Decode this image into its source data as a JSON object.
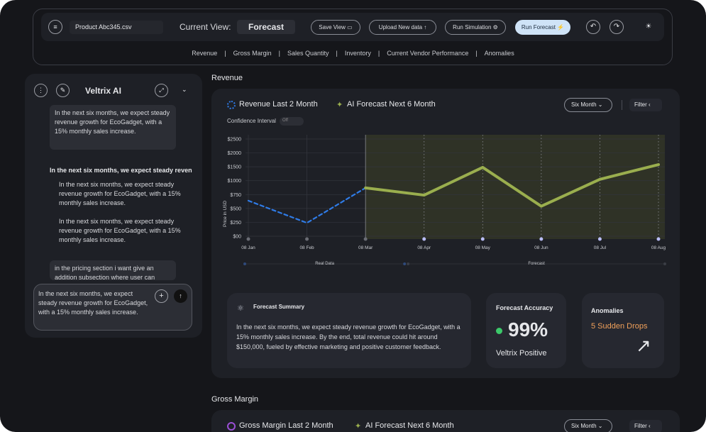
{
  "toolbar": {
    "file": "Product Abc345.csv",
    "view_label": "Current View:",
    "view": "Forecast",
    "buttons": [
      "Save View",
      "Upload New data",
      "Run Simulation",
      "Run Forecast"
    ]
  },
  "tabs": [
    "Revenue",
    "Gross Margin",
    "Sales Quantity",
    "Inventory",
    "Current Vendor Performance",
    "Anomalies"
  ],
  "sidebar": {
    "title": "Veltrix AI",
    "message1": "In the next six months, we expect steady revenue growth for EcoGadget, with a 15% monthly sales increase.",
    "heading": "In the next six months, we expect steady revenue growth",
    "bullets": [
      "In the next six months, we expect steady revenue growth for EcoGadget, with a 15% monthly sales increase.",
      "In the next six months, we expect steady revenue growth for EcoGadget, with a 15% monthly sales increase."
    ],
    "message2": "in  the pricing section i want give an addition subsection where user can",
    "input": "In the next six months, we expect steady revenue growth for EcoGadget, with a 15% monthly sales increase."
  },
  "revenue": {
    "section": "Revenue",
    "legend_past": "Revenue Last 2 Month",
    "legend_forecast": "AI Forecast Next 6 Month",
    "range": "Six Month",
    "filter": "Filter",
    "confidence": "Confidence Interval",
    "toggle": "Off"
  },
  "summary": {
    "title": "Forecast Summary",
    "text": "In the next six months, we expect steady revenue growth for EcoGadget, with a 15% monthly sales increase. By the end, total revenue could hit around $150,000, fueled by effective marketing and positive customer feedback."
  },
  "accuracy": {
    "title": "Forecast Accuracy",
    "value": "99%",
    "caption": "Veltrix Positive"
  },
  "anomalies": {
    "title": "Anomalies",
    "text": "5 Sudden Drops"
  },
  "gross_margin": {
    "section": "Gross Margin",
    "legend_past": "Gross Margin Last 2 Month",
    "legend_forecast": "AI Forecast Next 6 Month",
    "range": "Six Month",
    "filter": "Filter"
  },
  "chart_data": {
    "type": "line",
    "y_label": "Price in USD",
    "categories": [
      "08 Jan",
      "08 Feb",
      "08 Mar",
      "08 Apr",
      "08 May",
      "08 Jun",
      "08 Jul",
      "08 Aug"
    ],
    "series": [
      {
        "name": "Real Data",
        "color": "#2f7be6",
        "dashed": true,
        "values": [
          640,
          240,
          870,
          null,
          null,
          null,
          null,
          null
        ]
      },
      {
        "name": "Forecast",
        "color": "#9aae4e",
        "values": [
          null,
          null,
          870,
          740,
          1480,
          540,
          1050,
          1580
        ]
      }
    ],
    "ylim": [
      0,
      2500
    ],
    "yticks": [
      {
        "value": 0,
        "label": "$00"
      },
      {
        "value": 250,
        "label": "$250"
      },
      {
        "value": 500,
        "label": "$500"
      },
      {
        "value": 750,
        "label": "$750"
      },
      {
        "value": 1000,
        "label": "$1000"
      },
      {
        "value": 1500,
        "label": "$1500"
      },
      {
        "value": 2000,
        "label": "$2000"
      },
      {
        "value": 2500,
        "label": "$2500"
      }
    ],
    "grid": true
  }
}
